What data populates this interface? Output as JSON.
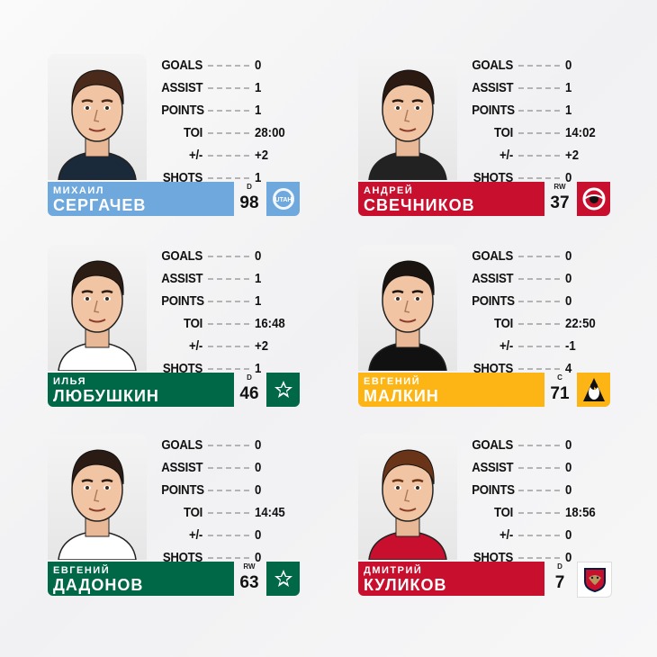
{
  "stat_labels": [
    "GOALS",
    "ASSIST",
    "POINTS",
    "TOI",
    "+/-",
    "SHOTS"
  ],
  "players": [
    {
      "first": "МИХАИЛ",
      "last": "СЕРГАЧЕВ",
      "pos": "D",
      "number": "98",
      "team_logo": "utah-logo",
      "logo_text": "UTAH",
      "bar_color": "#6fa8dc",
      "logo_bg": "#6fa8dc",
      "jersey": "#1b2a3a",
      "stats": [
        "0",
        "1",
        "1",
        "28:00",
        "+2",
        "1"
      ]
    },
    {
      "first": "АНДРЕЙ",
      "last": "СВЕЧНИКОВ",
      "pos": "RW",
      "number": "37",
      "team_logo": "hurricanes-logo",
      "logo_text": "",
      "bar_color": "#c8102e",
      "logo_bg": "#c8102e",
      "jersey": "#222",
      "stats": [
        "0",
        "1",
        "1",
        "14:02",
        "+2",
        "0"
      ]
    },
    {
      "first": "ИЛЬЯ",
      "last": "ЛЮБУШКИН",
      "pos": "D",
      "number": "46",
      "team_logo": "stars-logo",
      "logo_text": "",
      "bar_color": "#006847",
      "logo_bg": "#006847",
      "jersey": "#ffffff",
      "stats": [
        "0",
        "1",
        "1",
        "16:48",
        "+2",
        "1"
      ]
    },
    {
      "first": "ЕВГЕНИЙ",
      "last": "МАЛКИН",
      "pos": "C",
      "number": "71",
      "team_logo": "penguins-logo",
      "logo_text": "",
      "bar_color": "#fcb514",
      "logo_bg": "#fcb514",
      "jersey": "#111",
      "stats": [
        "0",
        "0",
        "0",
        "22:50",
        "-1",
        "4"
      ]
    },
    {
      "first": "ЕВГЕНИЙ",
      "last": "ДАДОНОВ",
      "pos": "RW",
      "number": "63",
      "team_logo": "stars-logo",
      "logo_text": "",
      "bar_color": "#006847",
      "logo_bg": "#006847",
      "jersey": "#ffffff",
      "stats": [
        "0",
        "0",
        "0",
        "14:45",
        "0",
        "0"
      ]
    },
    {
      "first": "ДМИТРИЙ",
      "last": "КУЛИКОВ",
      "pos": "D",
      "number": "7",
      "team_logo": "panthers-logo",
      "logo_text": "",
      "bar_color": "#c8102e",
      "logo_bg": "#ffffff",
      "jersey": "#c8102e",
      "stats": [
        "0",
        "0",
        "0",
        "18:56",
        "0",
        "0"
      ]
    }
  ]
}
